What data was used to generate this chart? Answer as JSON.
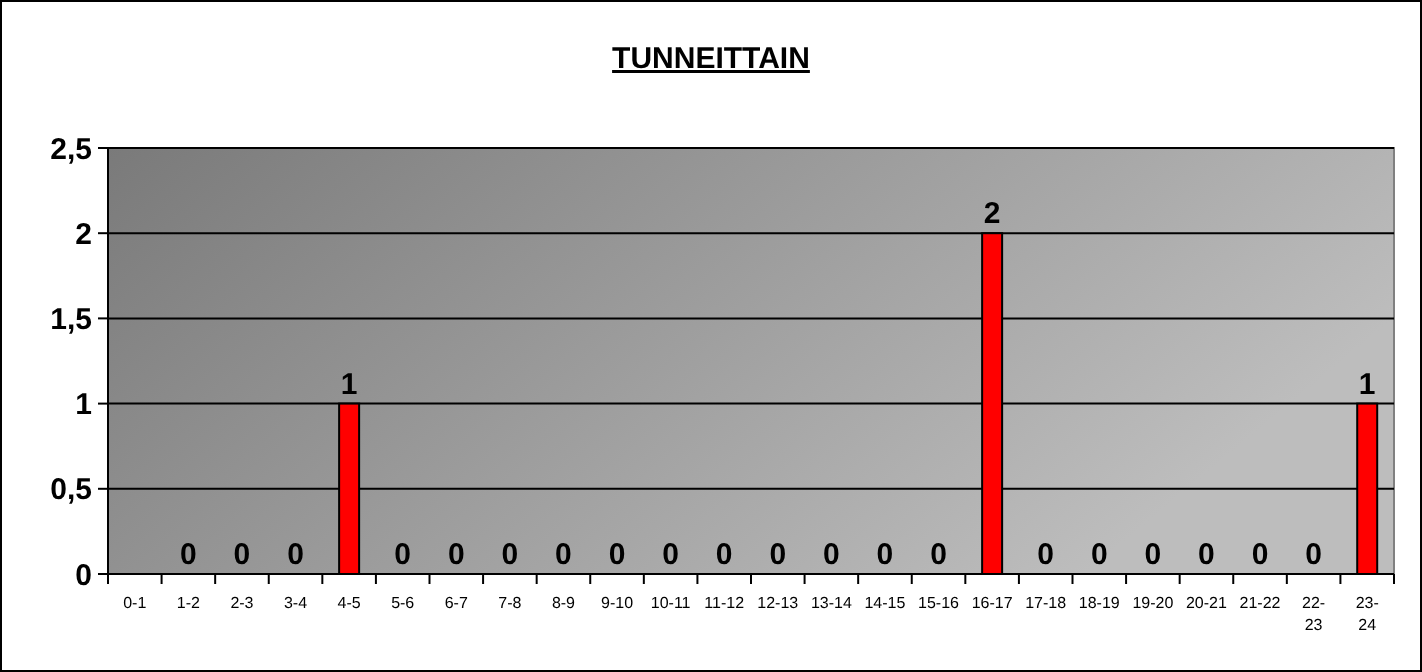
{
  "chart_data": {
    "type": "bar",
    "title": "TUNNEITTAIN",
    "categories": [
      "0-1",
      "1-2",
      "2-3",
      "3-4",
      "4-5",
      "5-6",
      "6-7",
      "7-8",
      "8-9",
      "9-10",
      "10-11",
      "11-12",
      "12-13",
      "13-14",
      "14-15",
      "15-16",
      "16-17",
      "17-18",
      "18-19",
      "19-20",
      "20-21",
      "21-22",
      "22-23",
      "23-24"
    ],
    "values": [
      null,
      0,
      0,
      0,
      1,
      0,
      0,
      0,
      0,
      0,
      0,
      0,
      0,
      0,
      0,
      0,
      2,
      0,
      0,
      0,
      0,
      0,
      0,
      1
    ],
    "value_labels": [
      null,
      "0",
      "0",
      "0",
      "1",
      "0",
      "0",
      "0",
      "0",
      "0",
      "0",
      "0",
      "0",
      "0",
      "0",
      "0",
      "2",
      "0",
      "0",
      "0",
      "0",
      "0",
      "0",
      "1"
    ],
    "color": "#ff0000",
    "ylim": [
      0,
      2.5
    ],
    "yticks": [
      0,
      {
        "value": 0.5,
        "label": "0,5"
      },
      1,
      {
        "value": 1.5,
        "label": "1,5"
      },
      2,
      {
        "value": 2.5,
        "label": "2,5"
      }
    ],
    "grid": "y"
  }
}
